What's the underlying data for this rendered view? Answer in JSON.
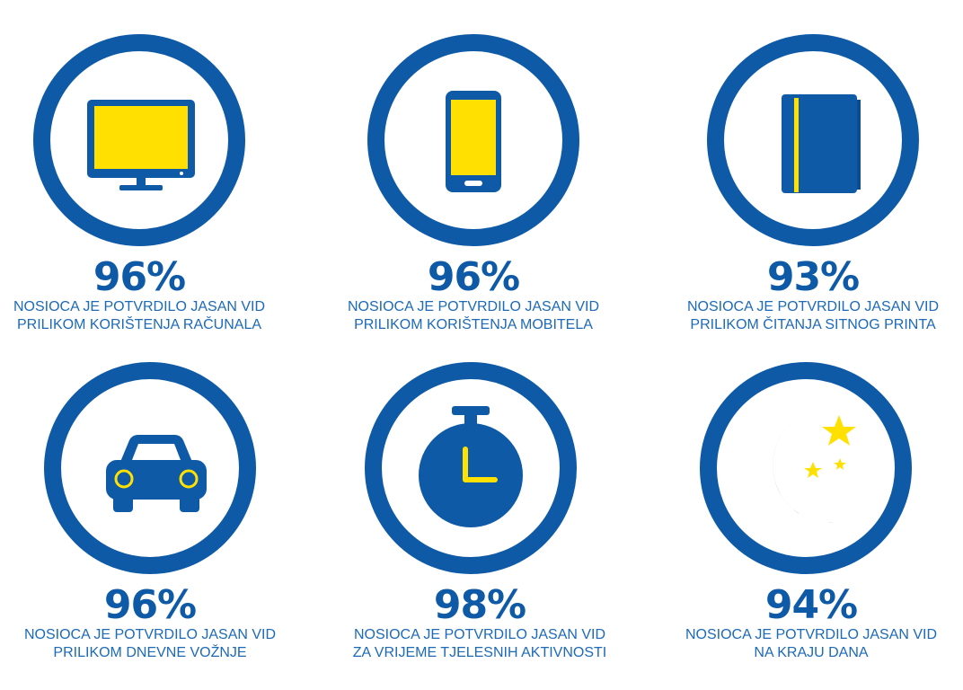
{
  "colors": {
    "blue": "#0e5aa7",
    "yellow": "#ffe000",
    "text_blue": "#1c6ab8"
  },
  "stats": [
    {
      "icon": "monitor-icon",
      "percent": "96%",
      "line1": "NOSIOCA JE POTVRDILO JASAN VID",
      "line2": "PRILIKOM KORIŠTENJA RAČUNALA"
    },
    {
      "icon": "smartphone-icon",
      "percent": "96%",
      "line1": "NOSIOCA JE POTVRDILO JASAN VID",
      "line2": "PRILIKOM KORIŠTENJA MOBITELA"
    },
    {
      "icon": "book-icon",
      "percent": "93%",
      "line1": "NOSIOCA JE POTVRDILO JASAN VID",
      "line2": "PRILIKOM ČITANJA SITNOG PRINTA"
    },
    {
      "icon": "car-icon",
      "percent": "96%",
      "line1": "NOSIOCA JE POTVRDILO JASAN VID",
      "line2": "PRILIKOM DNEVNE VOŽNJE"
    },
    {
      "icon": "stopwatch-icon",
      "percent": "98%",
      "line1": "NOSIOCA JE POTVRDILO JASAN VID",
      "line2": "ZA VRIJEME TJELESNIH AKTIVNOSTI"
    },
    {
      "icon": "moon-stars-icon",
      "percent": "94%",
      "line1": "NOSIOCA JE POTVRDILO JASAN VID",
      "line2": "NA KRAJU DANA"
    }
  ]
}
